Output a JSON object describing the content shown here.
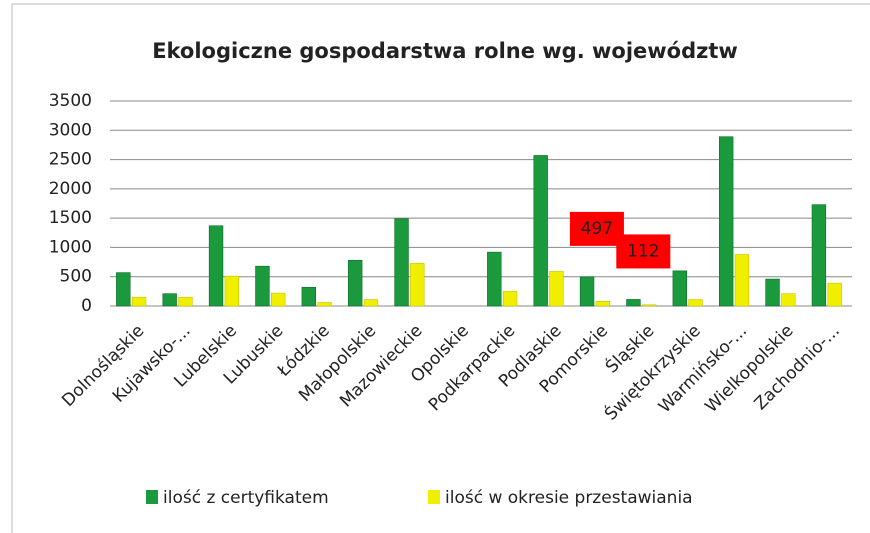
{
  "chart_data": {
    "type": "bar",
    "title": "Ekologiczne gospodarstwa rolne wg. województw",
    "categories": [
      "Dolnośląskie",
      "Kujawsko-...",
      "Lubelskie",
      "Lubuskie",
      "Łódzkie",
      "Małopolskie",
      "Mazowieckie",
      "Opolskie",
      "Podkarpackie",
      "Podlaskie",
      "Pomorskie",
      "Śląskie",
      "Świętokrzyskie",
      "Warmińsko-...",
      "Wielkopolskie",
      "Zachodnio-..."
    ],
    "series": [
      {
        "name": "ilość z certyfikatem",
        "color": "#1a9a3c",
        "values": [
          570,
          210,
          1370,
          680,
          320,
          780,
          1490,
          null,
          920,
          2570,
          497,
          112,
          600,
          2890,
          460,
          1730
        ],
        "value_labels": [
          null,
          null,
          null,
          null,
          null,
          null,
          null,
          null,
          null,
          null,
          "497",
          "112",
          null,
          null,
          null,
          null
        ]
      },
      {
        "name": "ilość w okresie przestawiania",
        "color": "#f0ef00",
        "values": [
          150,
          150,
          510,
          220,
          60,
          110,
          730,
          null,
          250,
          590,
          80,
          20,
          110,
          880,
          210,
          390
        ]
      }
    ],
    "ylim": [
      0,
      3500
    ],
    "yticks": [
      0,
      500,
      1000,
      1500,
      2000,
      2500,
      3000,
      3500
    ],
    "grid": true,
    "legend": "bottom"
  }
}
